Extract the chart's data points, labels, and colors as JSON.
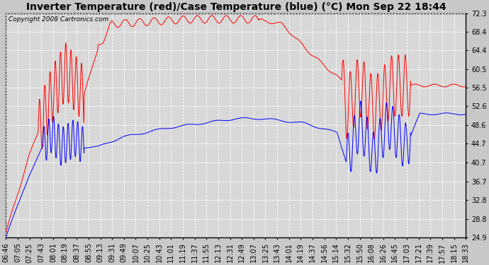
{
  "title": "Inverter Temperature (red)/Case Temperature (blue) (°C) Mon Sep 22 18:44",
  "copyright": "Copyright 2008 Cartronics.com",
  "ylim": [
    24.9,
    72.3
  ],
  "yticks": [
    24.9,
    28.8,
    32.8,
    36.7,
    40.7,
    44.7,
    48.6,
    52.6,
    56.5,
    60.5,
    64.4,
    68.4,
    72.3
  ],
  "x_labels": [
    "06:46",
    "07:05",
    "07:25",
    "07:43",
    "08:01",
    "08:19",
    "08:37",
    "08:55",
    "09:13",
    "09:31",
    "09:49",
    "10:07",
    "10:25",
    "10:43",
    "11:01",
    "11:19",
    "11:37",
    "11:55",
    "12:13",
    "12:31",
    "12:49",
    "13:07",
    "13:25",
    "13:43",
    "14:01",
    "14:19",
    "14:37",
    "14:56",
    "15:14",
    "15:32",
    "15:50",
    "16:08",
    "16:26",
    "16:45",
    "17:03",
    "17:21",
    "17:39",
    "17:57",
    "18:15",
    "18:33"
  ],
  "bg_color": "#c8c8c8",
  "plot_bg": "#d8d8d8",
  "grid_color": "#ffffff",
  "red_color": "#ff0000",
  "blue_color": "#0000ff",
  "title_fontsize": 10,
  "copyright_fontsize": 6.5,
  "tick_fontsize": 7
}
